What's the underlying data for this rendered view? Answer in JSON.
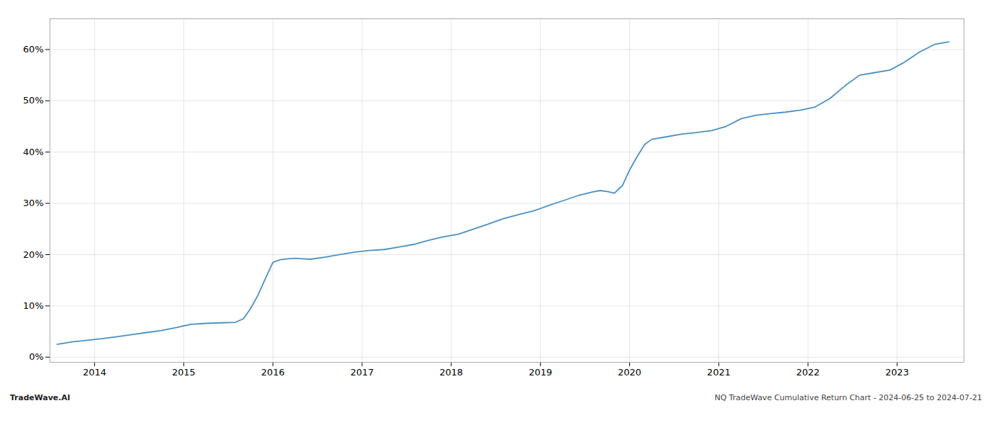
{
  "chart_data": {
    "type": "line",
    "title": "NQ TradeWave Cumulative Return Chart - 2024-06-25 to 2024-07-21",
    "annotations": [
      {
        "text": "TradeWave.AI"
      }
    ],
    "x": [
      2013.58,
      2013.75,
      2013.92,
      2014.08,
      2014.25,
      2014.42,
      2014.58,
      2014.75,
      2014.92,
      2015.08,
      2015.25,
      2015.42,
      2015.58,
      2015.67,
      2015.75,
      2015.83,
      2015.92,
      2016.0,
      2016.08,
      2016.17,
      2016.25,
      2016.33,
      2016.42,
      2016.58,
      2016.75,
      2016.92,
      2017.08,
      2017.25,
      2017.42,
      2017.58,
      2017.75,
      2017.92,
      2018.08,
      2018.25,
      2018.42,
      2018.58,
      2018.75,
      2018.92,
      2019.08,
      2019.25,
      2019.42,
      2019.58,
      2019.67,
      2019.75,
      2019.83,
      2019.92,
      2020.0,
      2020.08,
      2020.17,
      2020.25,
      2020.42,
      2020.58,
      2020.75,
      2020.92,
      2021.08,
      2021.25,
      2021.42,
      2021.58,
      2021.75,
      2021.92,
      2022.08,
      2022.25,
      2022.42,
      2022.58,
      2022.75,
      2022.92,
      2023.08,
      2023.25,
      2023.42,
      2023.58
    ],
    "values": [
      2.5,
      3.0,
      3.3,
      3.6,
      4.0,
      4.4,
      4.8,
      5.2,
      5.8,
      6.4,
      6.6,
      6.7,
      6.8,
      7.5,
      9.5,
      12.0,
      15.5,
      18.5,
      19.0,
      19.2,
      19.3,
      19.2,
      19.1,
      19.5,
      20.0,
      20.5,
      20.8,
      21.0,
      21.5,
      22.0,
      22.8,
      23.5,
      24.0,
      25.0,
      26.0,
      27.0,
      27.8,
      28.5,
      29.5,
      30.5,
      31.5,
      32.2,
      32.5,
      32.3,
      32.0,
      33.5,
      36.5,
      39.0,
      41.5,
      42.5,
      43.0,
      43.5,
      43.8,
      44.2,
      45.0,
      46.5,
      47.2,
      47.5,
      47.8,
      48.2,
      48.8,
      50.5,
      53.0,
      55.0,
      55.5,
      56.0,
      57.5,
      59.5,
      61.0,
      61.5
    ],
    "color": "#4a90c4",
    "xlim": [
      2013.5,
      2023.75
    ],
    "xticks": [
      2014,
      2015,
      2016,
      2017,
      2018,
      2019,
      2020,
      2021,
      2022,
      2023
    ],
    "ylim": [
      -1,
      66
    ],
    "yticks": [
      {
        "value": 0,
        "label": "0%"
      },
      {
        "value": 10,
        "label": "10%"
      },
      {
        "value": 20,
        "label": "20%"
      },
      {
        "value": 30,
        "label": "30%"
      },
      {
        "value": 40,
        "label": "40%"
      },
      {
        "value": 50,
        "label": "50%"
      },
      {
        "value": 60,
        "label": "60%"
      }
    ],
    "grid": true
  }
}
